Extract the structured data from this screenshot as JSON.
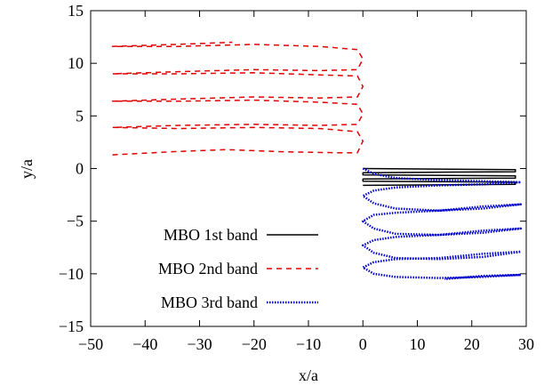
{
  "chart_data": {
    "type": "line",
    "xlabel": "x/a",
    "ylabel": "y/a",
    "xlim": [
      -50,
      30
    ],
    "ylim": [
      -15,
      15
    ],
    "xticks": [
      -50,
      -40,
      -30,
      -20,
      -10,
      0,
      10,
      20,
      30
    ],
    "yticks": [
      -15,
      -10,
      -5,
      0,
      5,
      10,
      15
    ],
    "xtick_labels": [
      "−50",
      "−40",
      "−30",
      "−20",
      "−10",
      "0",
      "10",
      "20",
      "30"
    ],
    "ytick_labels": [
      "−15",
      "−10",
      "−5",
      "0",
      "5",
      "10",
      "15"
    ],
    "grid": false,
    "legend_position": "bottom-left",
    "series": [
      {
        "name": "MBO 1st band",
        "color": "#000000",
        "style": "solid",
        "points": [
          [
            0,
            0
          ],
          [
            28,
            -0.1
          ],
          [
            28,
            -0.3
          ],
          [
            0,
            -0.4
          ],
          [
            0,
            -0.6
          ],
          [
            28,
            -0.7
          ],
          [
            28,
            -0.9
          ],
          [
            0,
            -1.0
          ],
          [
            0,
            -1.2
          ],
          [
            28,
            -1.3
          ],
          [
            28,
            -1.5
          ],
          [
            0,
            -1.6
          ]
        ]
      },
      {
        "name": "MBO 2nd band",
        "color": "#e00000",
        "style": "dashed",
        "points": [
          [
            -46,
            1.3
          ],
          [
            -35,
            1.6
          ],
          [
            -25,
            1.8
          ],
          [
            -15,
            1.6
          ],
          [
            -5,
            1.5
          ],
          [
            -1,
            1.5
          ],
          [
            0,
            2.6
          ],
          [
            -1,
            3.5
          ],
          [
            -8,
            3.8
          ],
          [
            -20,
            3.9
          ],
          [
            -34,
            3.8
          ],
          [
            -46,
            3.9
          ],
          [
            -34,
            4.1
          ],
          [
            -20,
            4.2
          ],
          [
            -8,
            4.1
          ],
          [
            -1,
            4.2
          ],
          [
            0,
            5.2
          ],
          [
            -1,
            6.1
          ],
          [
            -8,
            6.3
          ],
          [
            -20,
            6.5
          ],
          [
            -34,
            6.4
          ],
          [
            -46,
            6.4
          ],
          [
            -34,
            6.6
          ],
          [
            -20,
            6.8
          ],
          [
            -8,
            6.7
          ],
          [
            -1,
            6.8
          ],
          [
            0,
            7.8
          ],
          [
            -1,
            8.8
          ],
          [
            -8,
            8.9
          ],
          [
            -20,
            9.1
          ],
          [
            -34,
            9.0
          ],
          [
            -46,
            9.0
          ],
          [
            -34,
            9.2
          ],
          [
            -20,
            9.4
          ],
          [
            -8,
            9.3
          ],
          [
            -1,
            9.4
          ],
          [
            0,
            10.4
          ],
          [
            -1,
            11.3
          ],
          [
            -8,
            11.6
          ],
          [
            -20,
            11.8
          ],
          [
            -34,
            11.6
          ],
          [
            -46,
            11.6
          ],
          [
            -34,
            11.8
          ],
          [
            -24,
            12.0
          ]
        ]
      },
      {
        "name": "MBO 3rd band",
        "color": "#0000cc",
        "style": "dotted",
        "points": [
          [
            0,
            0
          ],
          [
            2,
            -0.5
          ],
          [
            6,
            -0.9
          ],
          [
            14,
            -1.1
          ],
          [
            22,
            -1.2
          ],
          [
            29,
            -1.3
          ],
          [
            22,
            -1.5
          ],
          [
            14,
            -1.6
          ],
          [
            6,
            -1.8
          ],
          [
            2,
            -2.1
          ],
          [
            0,
            -2.6
          ],
          [
            2,
            -3.3
          ],
          [
            6,
            -3.8
          ],
          [
            14,
            -4.0
          ],
          [
            22,
            -3.8
          ],
          [
            29,
            -3.4
          ],
          [
            22,
            -3.6
          ],
          [
            14,
            -4.0
          ],
          [
            6,
            -4.2
          ],
          [
            2,
            -4.4
          ],
          [
            0,
            -5.0
          ],
          [
            2,
            -5.7
          ],
          [
            6,
            -6.2
          ],
          [
            14,
            -6.3
          ],
          [
            22,
            -6.1
          ],
          [
            29,
            -5.7
          ],
          [
            22,
            -5.9
          ],
          [
            14,
            -6.3
          ],
          [
            6,
            -6.5
          ],
          [
            2,
            -6.8
          ],
          [
            0,
            -7.3
          ],
          [
            2,
            -8.0
          ],
          [
            6,
            -8.5
          ],
          [
            14,
            -8.6
          ],
          [
            22,
            -8.4
          ],
          [
            29,
            -7.9
          ],
          [
            22,
            -8.1
          ],
          [
            14,
            -8.5
          ],
          [
            6,
            -8.6
          ],
          [
            2,
            -8.9
          ],
          [
            0,
            -9.4
          ],
          [
            2,
            -10.0
          ],
          [
            6,
            -10.3
          ],
          [
            14,
            -10.4
          ],
          [
            22,
            -10.3
          ],
          [
            29,
            -10.1
          ],
          [
            22,
            -10.2
          ],
          [
            15,
            -10.5
          ]
        ]
      }
    ]
  }
}
